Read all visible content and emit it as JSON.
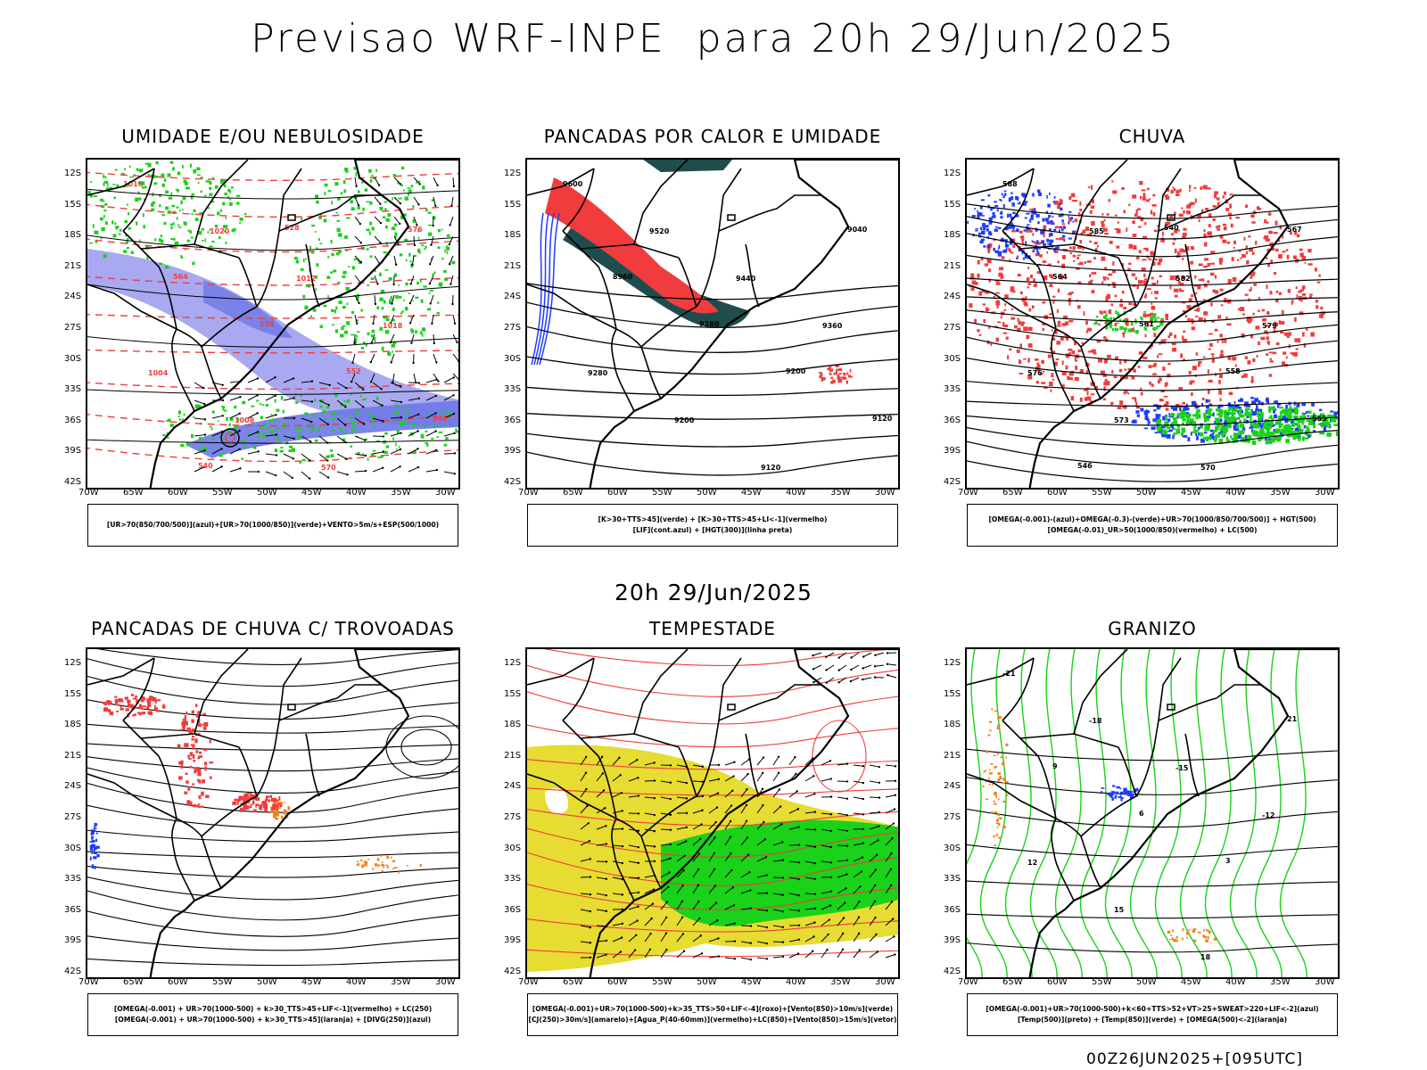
{
  "header": {
    "title": "Previsao WRF-INPE  para 20h 29/Jun/2025"
  },
  "middle_title": "20h 29/Jun/2025",
  "footer": {
    "run_label": "00Z26JUN2025+[095UTC]"
  },
  "axes": {
    "lat_ticks": [
      "12S",
      "15S",
      "18S",
      "21S",
      "24S",
      "27S",
      "30S",
      "33S",
      "36S",
      "39S",
      "42S"
    ],
    "lon_ticks": [
      "70W",
      "65W",
      "60W",
      "55W",
      "50W",
      "45W",
      "40W",
      "35W",
      "30W"
    ]
  },
  "colors": {
    "green": "#19d219",
    "blue": "#1e3cff",
    "red": "#f03c3c",
    "lavender": "#a0a0f0",
    "slate": "#6e78e6",
    "dark_teal": "#1f4d4d",
    "yellow": "#e6dc32",
    "orange": "#f0821e",
    "contour_black": "#000000"
  },
  "panels": [
    {
      "title": "UMIDADE E/OU NEBULOSIDADE",
      "legend_lines": [
        "[UR>70(850/700/500)](azul)+[UR>70(1000/850)](verde)+VENTO>5m/s+ESP(500/1000)"
      ],
      "contour_labels": [
        "1016",
        "1020",
        "1012",
        "1018",
        "1004",
        "1008",
        "570",
        "576",
        "564",
        "558",
        "552",
        "546",
        "540",
        "528"
      ]
    },
    {
      "title": "PANCADAS POR CALOR E UMIDADE",
      "legend_lines": [
        "[K>30+TTS>45](verde) + [K>30+TTS>45+LI<-1](vermelho)",
        "[LIF](cont.azul) + [HGT(300)](linha preta)"
      ],
      "contour_labels": [
        "9600",
        "9520",
        "9440",
        "9360",
        "9280",
        "9200",
        "9120",
        "9040",
        "8960",
        "9280",
        "9200",
        "9120"
      ]
    },
    {
      "title": "CHUVA",
      "legend_lines": [
        "[OMEGA(-0.001)-(azul)+OMEGA(-0.3)-(verde)+UR>70(1000/850/700/500)] + HGT(500)",
        "[OMEGA(-0.01)_UR>50(1000/850)(vermelho) + LC(500)"
      ],
      "contour_labels": [
        "588",
        "585",
        "582",
        "579",
        "576",
        "573",
        "570",
        "567",
        "564",
        "561",
        "558",
        "555",
        "546",
        "540"
      ]
    },
    {
      "title": "PANCADAS DE CHUVA C/ TROVOADAS",
      "legend_lines": [
        "[OMEGA(-0.001) + UR>70(1000-500) + k>30_TTS>45+LIF<-1](vermelho) + LC(250)",
        "[OMEGA(-0.001) + UR>70(1000-500) + k>30_TTS>45](laranja) + [DIVG(250)](azul)"
      ],
      "contour_labels": []
    },
    {
      "title": "TEMPESTADE",
      "legend_lines": [
        "[OMEGA(-0.001)+UR>70(1000-500)+k>35_TTS>50+LIF<-4](roxo)+[Vento(850)>10m/s](verde)",
        "[CJ(250)>30m/s](amarelo)+[Agua_P(40-60mm)](vermelho)+LC(850)+[Vento(850)>15m/s](vetor)"
      ],
      "contour_labels": []
    },
    {
      "title": "GRANIZO",
      "legend_lines": [
        "[OMEGA(-0.001)+UR>70(1000-500)+k<60+TTS>52+VT>25+SWEAT>220+LIF<-2](azul)",
        "[Temp(500)](preto) + [Temp(850)](verde) + [OMEGA(500)<-2](laranja)"
      ],
      "contour_labels": [
        "-21",
        "-18",
        "-15",
        "-12",
        "12",
        "15",
        "18",
        "21",
        "9",
        "6",
        "3"
      ]
    }
  ]
}
